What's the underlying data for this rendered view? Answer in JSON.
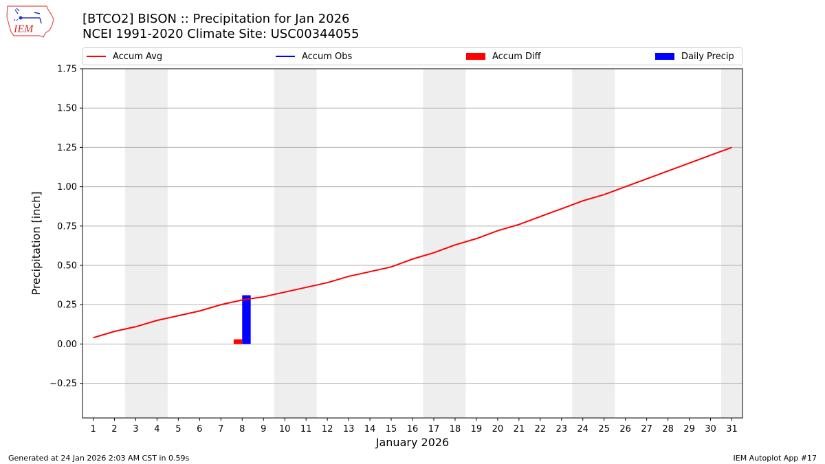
{
  "header": {
    "title_line1": "[BTCO2] BISON :: Precipitation for Jan 2026",
    "title_line2": "NCEI 1991-2020 Climate Site: USC00344055"
  },
  "logo": {
    "text": "IEM",
    "icon": "iem-logo-icon"
  },
  "legend": {
    "accum_avg": "Accum Avg",
    "accum_obs": "Accum Obs",
    "accum_diff": "Accum Diff",
    "daily_precip": "Daily Precip"
  },
  "colors": {
    "accum_avg": "#ff0000",
    "accum_obs": "#0000ff",
    "accum_diff": "#ff0000",
    "daily_precip": "#0000ff",
    "weekend_shade": "#eeeeee",
    "grid": "#b0b0b0"
  },
  "chart_data": {
    "type": "line",
    "title": "[BTCO2] BISON :: Precipitation for Jan 2026",
    "subtitle": "NCEI 1991-2020 Climate Site: USC00344055",
    "xlabel": "January 2026",
    "ylabel": "Precipitation [inch]",
    "xlim": [
      0.5,
      31.5
    ],
    "ylim": [
      -0.47,
      1.75
    ],
    "yticks": [
      -0.25,
      0.0,
      0.25,
      0.5,
      0.75,
      1.0,
      1.25,
      1.5,
      1.75
    ],
    "ytick_labels": [
      "−0.25",
      "0.00",
      "0.25",
      "0.50",
      "0.75",
      "1.00",
      "1.25",
      "1.50",
      "1.75"
    ],
    "x": [
      1,
      2,
      3,
      4,
      5,
      6,
      7,
      8,
      9,
      10,
      11,
      12,
      13,
      14,
      15,
      16,
      17,
      18,
      19,
      20,
      21,
      22,
      23,
      24,
      25,
      26,
      27,
      28,
      29,
      30,
      31
    ],
    "weekend_spans": [
      [
        2.5,
        4.5
      ],
      [
        9.5,
        11.5
      ],
      [
        16.5,
        18.5
      ],
      [
        23.5,
        25.5
      ],
      [
        30.5,
        31.5
      ]
    ],
    "grid": "y",
    "series": [
      {
        "name": "Accum Avg",
        "kind": "line",
        "values": [
          0.04,
          0.08,
          0.11,
          0.15,
          0.18,
          0.21,
          0.25,
          0.28,
          0.3,
          0.33,
          0.36,
          0.39,
          0.43,
          0.46,
          0.49,
          0.54,
          0.58,
          0.63,
          0.67,
          0.72,
          0.76,
          0.81,
          0.86,
          0.91,
          0.95,
          1.0,
          1.05,
          1.1,
          1.15,
          1.2,
          1.25
        ]
      },
      {
        "name": "Accum Diff",
        "kind": "bar",
        "x": [
          8
        ],
        "values": [
          0.03
        ]
      },
      {
        "name": "Daily Precip",
        "kind": "bar",
        "x": [
          8
        ],
        "values": [
          0.31
        ]
      }
    ]
  },
  "footer": {
    "left": "Generated at 24 Jan 2026 2:03 AM CST in 0.59s",
    "right": "IEM Autoplot App #17"
  }
}
